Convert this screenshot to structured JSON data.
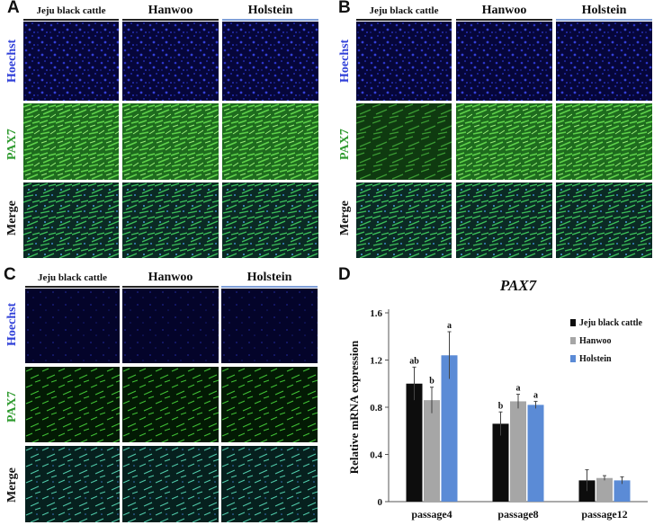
{
  "panels": {
    "A": {
      "label": "A",
      "columns": [
        "Jeju black cattle",
        "Hanwoo",
        "Holstein"
      ],
      "rows": [
        "Hoechst",
        "PAX7",
        "Merge"
      ]
    },
    "B": {
      "label": "B",
      "columns": [
        "Jeju black cattle",
        "Hanwoo",
        "Holstein"
      ],
      "rows": [
        "Hoechst",
        "PAX7",
        "Merge"
      ]
    },
    "C": {
      "label": "C",
      "columns": [
        "Jeju black cattle",
        "Hanwoo",
        "Holstein"
      ],
      "rows": [
        "Hoechst",
        "PAX7",
        "Merge"
      ]
    },
    "D": {
      "label": "D"
    }
  },
  "colors": {
    "hoechst_label": "#2f3fd8",
    "pax7_label": "#2e9a2e",
    "merge_label": "#111111",
    "header_line_black": "#222222",
    "header_line_blue": "#7f9fd8",
    "jeju": "#0d0d0d",
    "hanwoo": "#a6a6a6",
    "holstein": "#5b8bd6"
  },
  "chart_data": {
    "type": "bar",
    "title": "PAX7",
    "xlabel": "",
    "ylabel": "Relative mRNA expression",
    "ylim": [
      0,
      1.6
    ],
    "yticks": [
      "0",
      "0.4",
      "0.8",
      "1.2",
      "1.6"
    ],
    "categories": [
      "passage4",
      "passage8",
      "passage12"
    ],
    "series": [
      {
        "name": "Jeju black cattle",
        "color": "#0d0d0d",
        "values": [
          1.0,
          0.66,
          0.18
        ],
        "errors": [
          0.14,
          0.1,
          0.09
        ],
        "letters": [
          "ab",
          "b",
          ""
        ]
      },
      {
        "name": "Hanwoo",
        "color": "#a6a6a6",
        "values": [
          0.86,
          0.85,
          0.2
        ],
        "errors": [
          0.11,
          0.06,
          0.02
        ],
        "letters": [
          "b",
          "a",
          ""
        ]
      },
      {
        "name": "Holstein",
        "color": "#5b8bd6",
        "values": [
          1.24,
          0.82,
          0.18
        ],
        "errors": [
          0.2,
          0.03,
          0.03
        ],
        "letters": [
          "a",
          "a",
          ""
        ]
      }
    ],
    "legend_position": "top-right",
    "grid": false
  }
}
